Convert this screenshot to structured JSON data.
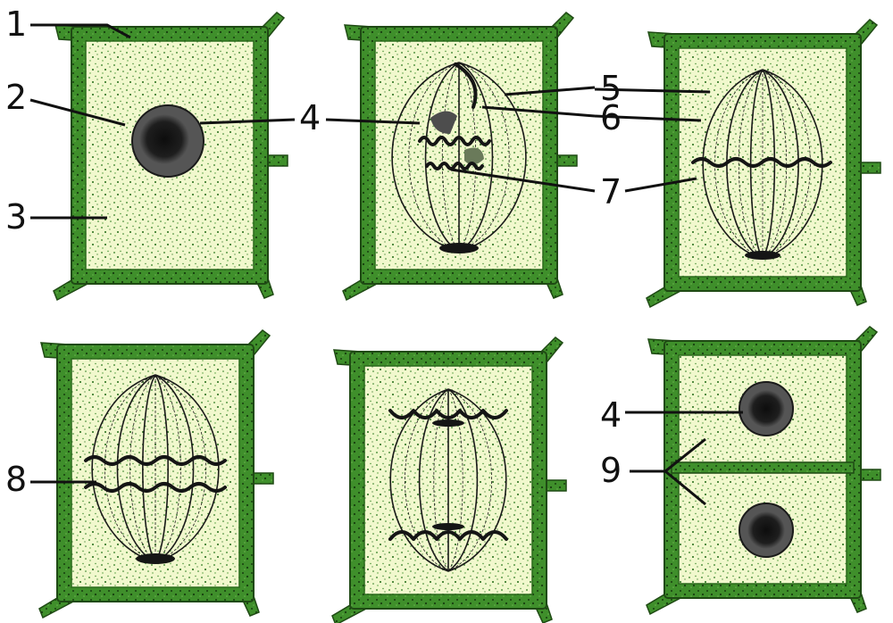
{
  "colors": {
    "wall_fill": "#3f8f2b",
    "wall_dark": "#1f4a14",
    "cytoplasm": "#f1f8cd",
    "speckle": "#2a7a1e",
    "nucleus": "#2b2b2b",
    "nucleus_rim": "#4d4d4d",
    "ink": "#111111"
  },
  "panels": [
    {
      "stage": "interphase"
    },
    {
      "stage": "prophase"
    },
    {
      "stage": "metaphase"
    },
    {
      "stage": "anaphase"
    },
    {
      "stage": "telophase"
    },
    {
      "stage": "cytokinesis"
    }
  ],
  "labels": {
    "l1": "1",
    "l2": "2",
    "l3": "3",
    "l4a": "4",
    "l4b": "4",
    "l5": "5",
    "l6": "6",
    "l7": "7",
    "l8": "8",
    "l9": "9"
  }
}
